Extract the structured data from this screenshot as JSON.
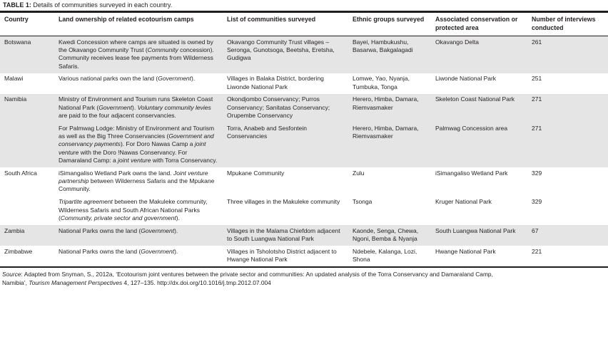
{
  "title": {
    "label": "TABLE 1:",
    "text": " Details of communities surveyed in each country."
  },
  "columns": [
    "Country",
    "Land ownership of related ecotourism camps",
    "List of communities surveyed",
    "Ethnic groups surveyed",
    "Associated conservation or protected area",
    "Number of interviews conducted"
  ],
  "rows": [
    {
      "country": "Botswana",
      "shade": true,
      "land": [
        {
          "t": "Kwedi Concession where camps are situated is owned by the Okavango Community Trust ("
        },
        {
          "t": "Community",
          "i": true
        },
        {
          "t": " concession). Community receives lease fee payments from Wilderness Safaris."
        }
      ],
      "communities": "Okavango Community Trust villages – Seronga, Gunotsoga, Beetsha, Eretsha, Gudigwa",
      "ethnic": "Bayei, Hambukushu, Basarwa, Bakgalagadi",
      "area": "Okavango Delta",
      "interviews": "261"
    },
    {
      "country": "Malawi",
      "shade": false,
      "land": [
        {
          "t": "Various national parks own the land ("
        },
        {
          "t": "Government",
          "i": true
        },
        {
          "t": ")."
        }
      ],
      "communities": "Villages in Balaka District, bordering Liwonde National Park",
      "ethnic": "Lomwe, Yao, Nyanja, Tumbuka, Tonga",
      "area": "Liwonde National Park",
      "interviews": "251"
    },
    {
      "country": "Namibia",
      "shade": true,
      "land": [
        {
          "t": "Ministry of Environment and Tourism runs Skeleton Coast National Park ("
        },
        {
          "t": "Government",
          "i": true
        },
        {
          "t": "). "
        },
        {
          "t": "Voluntary community levies",
          "i": true
        },
        {
          "t": " are paid to the four adjacent conservancies."
        }
      ],
      "communities": "Okondjombo Conservancy; Purros Conservancy; Sanitatas Conservancy; Orupembe Conservancy",
      "ethnic": "Herero, Himba, Damara, Riemvasmaker",
      "area": "Skeleton Coast National Park",
      "interviews": "271"
    },
    {
      "country": "",
      "shade": true,
      "land": [
        {
          "t": "For Palmwag Lodge: Ministry of Environment and Tourism as well as the Big Three Conservancies ("
        },
        {
          "t": "Government and conservancy payments",
          "i": true
        },
        {
          "t": "). For Doro Nawas Camp a "
        },
        {
          "t": "joint venture",
          "i": true
        },
        {
          "t": " with the Doro !Nawas Conservancy. For Damaraland Camp: a "
        },
        {
          "t": "joint venture",
          "i": true
        },
        {
          "t": " with Torra Conservancy."
        }
      ],
      "communities": "Torra, Anabeb and Sesfontein Conservancies",
      "ethnic": "Herero, Himba, Damara, Riemvasmaker",
      "area": "Palmwag Concession area",
      "interviews": "271"
    },
    {
      "country": "South Africa",
      "shade": false,
      "land": [
        {
          "t": "iSimangaliso Wetland Park owns the land. "
        },
        {
          "t": "Joint venture partnership",
          "i": true
        },
        {
          "t": " between Wilderness Safaris and the Mpukane Community."
        }
      ],
      "communities": "Mpukane Community",
      "ethnic": "Zulu",
      "area": "iSimangaliso Wetland Park",
      "interviews": "329"
    },
    {
      "country": "",
      "shade": false,
      "land": [
        {
          "t": "Tripartite agreement",
          "i": true
        },
        {
          "t": " between the Makuleke community, Wilderness Safaris and South African National Parks ("
        },
        {
          "t": "Community, private sector and government",
          "i": true
        },
        {
          "t": ")."
        }
      ],
      "communities": "Three villages in the Makuleke community",
      "ethnic": "Tsonga",
      "area": "Kruger National Park",
      "interviews": "329"
    },
    {
      "country": "Zambia",
      "shade": true,
      "land": [
        {
          "t": "National Parks owns the land ("
        },
        {
          "t": "Government",
          "i": true
        },
        {
          "t": ")."
        }
      ],
      "communities": "Villages in the Malama Chiefdom adjacent to South Luangwa National Park",
      "ethnic": "Kaonde, Senga, Chewa, Ngoni, Bemba & Nyanja",
      "area": "South Luangwa National Park",
      "interviews": "67"
    },
    {
      "country": "Zimbabwe",
      "shade": false,
      "land": [
        {
          "t": "National Parks owns the land ("
        },
        {
          "t": "Government",
          "i": true
        },
        {
          "t": ")."
        }
      ],
      "communities": "Villages in Tsholotsho District adjacent to Hwange National Park",
      "ethnic": "Ndebele, Kalanga, Lozi, Shona",
      "area": "Hwange National Park",
      "interviews": "221"
    }
  ],
  "footnote_lines": [
    [
      {
        "t": "Source",
        "i": true
      },
      {
        "t": ": Adapted from Snyman, S., 2012a, ‘Ecotourism joint ventures between the private sector and communities: An updated analysis of the Torra Conservancy and Damaraland Camp,"
      }
    ],
    [
      {
        "t": "Namibia’, "
      },
      {
        "t": "Tourism Management Perspectives",
        "i": true
      },
      {
        "t": " 4, 127–135. http://dx.doi.org/10.1016/j.tmp.2012.07.004"
      }
    ]
  ],
  "colors": {
    "shade": "#e5e5e6",
    "border": "#221e1f",
    "text": "#231f20"
  }
}
